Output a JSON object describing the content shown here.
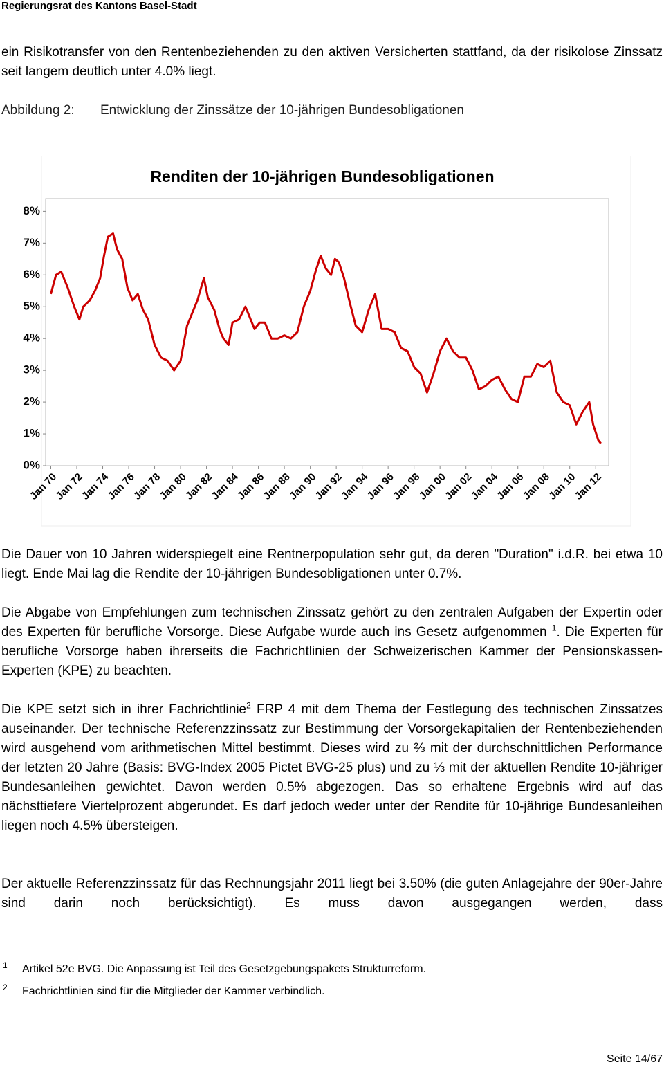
{
  "header": {
    "title": "Regierungsrat des Kantons Basel-Stadt"
  },
  "paragraphs": [
    [
      "ein Risikotransfer von den Rentenbeziehenden zu den aktiven Versicherten stattfand, da der risikolose Zinssatz seit langem deutlich unter 4.0% liegt."
    ],
    [
      "Die Dauer von 10 Jahren widerspiegelt eine Rentnerpopulation sehr gut, da deren \"Duration\" i.d.R. bei etwa 10 liegt. Ende Mai lag die Rendite der 10-jährigen Bundesobligationen unter 0.7%."
    ],
    [
      "Die Abgabe von Empfehlungen zum technischen Zinssatz gehört zu den zentralen Aufgaben der Expertin oder des Experten für berufliche Vorsorge. Diese Aufgabe wurde auch ins Gesetz aufgenommen ",
      {
        "sup": "1"
      },
      ". Die Experten für berufliche Vorsorge haben ihrerseits die Fachrichtlinien der Schweizerischen Kammer der Pensionskassen-Experten (KPE) zu beachten."
    ],
    [
      "Die KPE setzt sich in ihrer Fachrichtlinie",
      {
        "sup": "2"
      },
      " FRP 4 mit dem Thema der Festlegung des technischen Zinssatzes auseinander. Der technische Referenzzinssatz zur Bestimmung der Vorsorgekapitalien der Rentenbeziehenden wird ausgehend vom arithmetischen Mittel bestimmt. Dieses wird zu ⅔ mit der durchschnittlichen Performance der letzten 20 Jahre (Basis: BVG-Index 2005 Pictet BVG-25 plus) und zu ⅓ mit der aktuellen Rendite 10-jähriger Bundesanleihen gewichtet. Davon werden 0.5% abgezogen. Das so erhaltene Ergebnis wird auf das nächsttiefere Viertelprozent abgerundet. Es darf jedoch weder unter der Rendite für 10-jährige Bundesanleihen liegen noch 4.5% übersteigen."
    ],
    [
      "Der aktuelle Referenzzinssatz für das Rechnungsjahr 2011 liegt bei 3.50% (die guten Anlagejahre der 90er-Jahre sind darin noch berücksichtigt). Es muss davon ausgegangen werden, dass"
    ]
  ],
  "figure": {
    "label": "Abbildung 2:",
    "caption": "Entwicklung der Zinssätze der 10-jährigen Bundesobligationen"
  },
  "chart_data": {
    "type": "line",
    "title": "Renditen der 10-jährigen Bundesobligationen",
    "color": "#cc0000",
    "x": [
      1970.0,
      1970.4,
      1970.8,
      1971.3,
      1971.8,
      1972.2,
      1972.5,
      1973.0,
      1973.4,
      1973.8,
      1974.1,
      1974.4,
      1974.8,
      1975.1,
      1975.5,
      1975.9,
      1976.3,
      1976.7,
      1977.1,
      1977.5,
      1978.0,
      1978.5,
      1979.0,
      1979.5,
      1980.0,
      1980.5,
      1980.9,
      1981.3,
      1981.8,
      1982.1,
      1982.6,
      1983.0,
      1983.3,
      1983.7,
      1984.0,
      1984.5,
      1985.0,
      1985.3,
      1985.7,
      1986.1,
      1986.5,
      1987.0,
      1987.5,
      1988.0,
      1988.5,
      1989.0,
      1989.5,
      1990.0,
      1990.4,
      1990.8,
      1991.2,
      1991.6,
      1991.9,
      1992.2,
      1992.6,
      1993.0,
      1993.5,
      1994.0,
      1994.5,
      1995.0,
      1995.5,
      1996.0,
      1996.5,
      1997.0,
      1997.5,
      1998.0,
      1998.5,
      1999.0,
      1999.5,
      2000.0,
      2000.5,
      2001.0,
      2001.5,
      2002.0,
      2002.5,
      2003.0,
      2003.5,
      2004.0,
      2004.5,
      2005.0,
      2005.5,
      2006.0,
      2006.5,
      2007.0,
      2007.5,
      2008.0,
      2008.5,
      2009.0,
      2009.5,
      2010.0,
      2010.5,
      2011.0,
      2011.5,
      2011.8,
      2012.2,
      2012.4
    ],
    "values": [
      5.4,
      6.0,
      6.1,
      5.6,
      5.0,
      4.6,
      5.0,
      5.2,
      5.5,
      5.9,
      6.6,
      7.2,
      7.3,
      6.8,
      6.5,
      5.6,
      5.2,
      5.4,
      4.9,
      4.6,
      3.8,
      3.4,
      3.3,
      3.0,
      3.3,
      4.4,
      4.8,
      5.2,
      5.9,
      5.3,
      4.9,
      4.3,
      4.0,
      3.8,
      4.5,
      4.6,
      5.0,
      4.7,
      4.3,
      4.5,
      4.5,
      4.0,
      4.0,
      4.1,
      4.0,
      4.2,
      5.0,
      5.5,
      6.1,
      6.6,
      6.2,
      6.0,
      6.5,
      6.4,
      5.9,
      5.2,
      4.4,
      4.2,
      4.9,
      5.4,
      4.3,
      4.3,
      4.2,
      3.7,
      3.6,
      3.1,
      2.9,
      2.3,
      2.9,
      3.6,
      4.0,
      3.6,
      3.4,
      3.4,
      3.0,
      2.4,
      2.5,
      2.7,
      2.8,
      2.4,
      2.1,
      2.0,
      2.8,
      2.8,
      3.2,
      3.1,
      3.3,
      2.3,
      2.0,
      1.9,
      1.3,
      1.7,
      2.0,
      1.3,
      0.8,
      0.7
    ],
    "xlim": [
      1969.6,
      2013.0
    ],
    "xticks": [
      {
        "value": 1970,
        "label": "Jan 70"
      },
      {
        "value": 1972,
        "label": "Jan 72"
      },
      {
        "value": 1974,
        "label": "Jan 74"
      },
      {
        "value": 1976,
        "label": "Jan 76"
      },
      {
        "value": 1978,
        "label": "Jan 78"
      },
      {
        "value": 1980,
        "label": "Jan 80"
      },
      {
        "value": 1982,
        "label": "Jan 82"
      },
      {
        "value": 1984,
        "label": "Jan 84"
      },
      {
        "value": 1986,
        "label": "Jan 86"
      },
      {
        "value": 1988,
        "label": "Jan 88"
      },
      {
        "value": 1990,
        "label": "Jan 90"
      },
      {
        "value": 1992,
        "label": "Jan 92"
      },
      {
        "value": 1994,
        "label": "Jan 94"
      },
      {
        "value": 1996,
        "label": "Jan 96"
      },
      {
        "value": 1998,
        "label": "Jan 98"
      },
      {
        "value": 2000,
        "label": "Jan 00"
      },
      {
        "value": 2002,
        "label": "Jan 02"
      },
      {
        "value": 2004,
        "label": "Jan 04"
      },
      {
        "value": 2006,
        "label": "Jan 06"
      },
      {
        "value": 2008,
        "label": "Jan 08"
      },
      {
        "value": 2010,
        "label": "Jan 10"
      },
      {
        "value": 2012,
        "label": "Jan 12"
      }
    ],
    "ylim": [
      0,
      8.4
    ],
    "yticks": [
      {
        "value": 0,
        "label": "0%"
      },
      {
        "value": 1,
        "label": "1%"
      },
      {
        "value": 2,
        "label": "2%"
      },
      {
        "value": 3,
        "label": "3%"
      },
      {
        "value": 4,
        "label": "4%"
      },
      {
        "value": 5,
        "label": "5%"
      },
      {
        "value": 6,
        "label": "6%"
      },
      {
        "value": 7,
        "label": "7%"
      },
      {
        "value": 8,
        "label": "8%"
      }
    ],
    "grid": false
  },
  "footnotes": [
    {
      "number": 1,
      "text": "Artikel 52e BVG. Die Anpassung ist Teil des Gesetzgebungspakets Strukturreform."
    },
    {
      "number": 2,
      "text": "Fachrichtlinien sind für die Mitglieder der Kammer verbindlich."
    }
  ],
  "page_number": "Seite 14/67"
}
